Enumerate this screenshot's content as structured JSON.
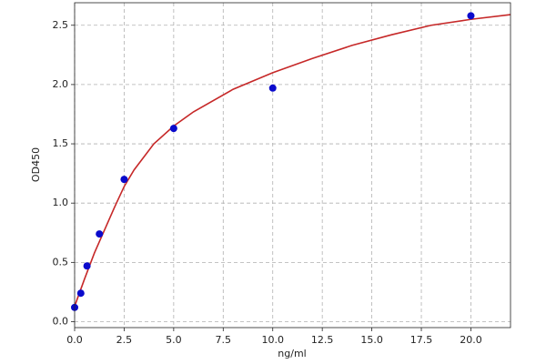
{
  "chart_data": {
    "type": "scatter",
    "x_label": "ng/ml",
    "y_label": "OD450",
    "xlim": [
      0,
      22
    ],
    "ylim": [
      -0.05,
      2.69
    ],
    "xticks": [
      {
        "value": 0,
        "label": "0.0"
      },
      2.5,
      {
        "value": 5,
        "label": "5.0"
      },
      7.5,
      {
        "value": 10,
        "label": "10.0"
      },
      12.5,
      {
        "value": 15,
        "label": "15.0"
      },
      17.5,
      {
        "value": 20,
        "label": "20.0"
      }
    ],
    "yticks": [
      {
        "value": 0,
        "label": "0.0"
      },
      0.5,
      {
        "value": 1,
        "label": "1.0"
      },
      1.5,
      {
        "value": 2,
        "label": "2.0"
      },
      2.5
    ],
    "grid": true,
    "series": [
      {
        "type": "line",
        "color": "#c62828",
        "x": [
          0,
          0.5,
          1,
          1.5,
          2,
          2.5,
          3,
          4,
          5,
          6,
          8,
          10,
          12,
          14,
          16,
          18,
          20,
          22
        ],
        "values": [
          0.13,
          0.36,
          0.58,
          0.77,
          0.96,
          1.14,
          1.28,
          1.5,
          1.65,
          1.77,
          1.96,
          2.1,
          2.22,
          2.33,
          2.42,
          2.5,
          2.55,
          2.59
        ]
      },
      {
        "type": "scatter",
        "color": "#0a0acc",
        "x": [
          0,
          0.312,
          0.625,
          1.25,
          2.5,
          5,
          10,
          20
        ],
        "values": [
          0.12,
          0.24,
          0.47,
          0.74,
          1.2,
          1.63,
          1.97,
          2.58
        ]
      }
    ]
  }
}
